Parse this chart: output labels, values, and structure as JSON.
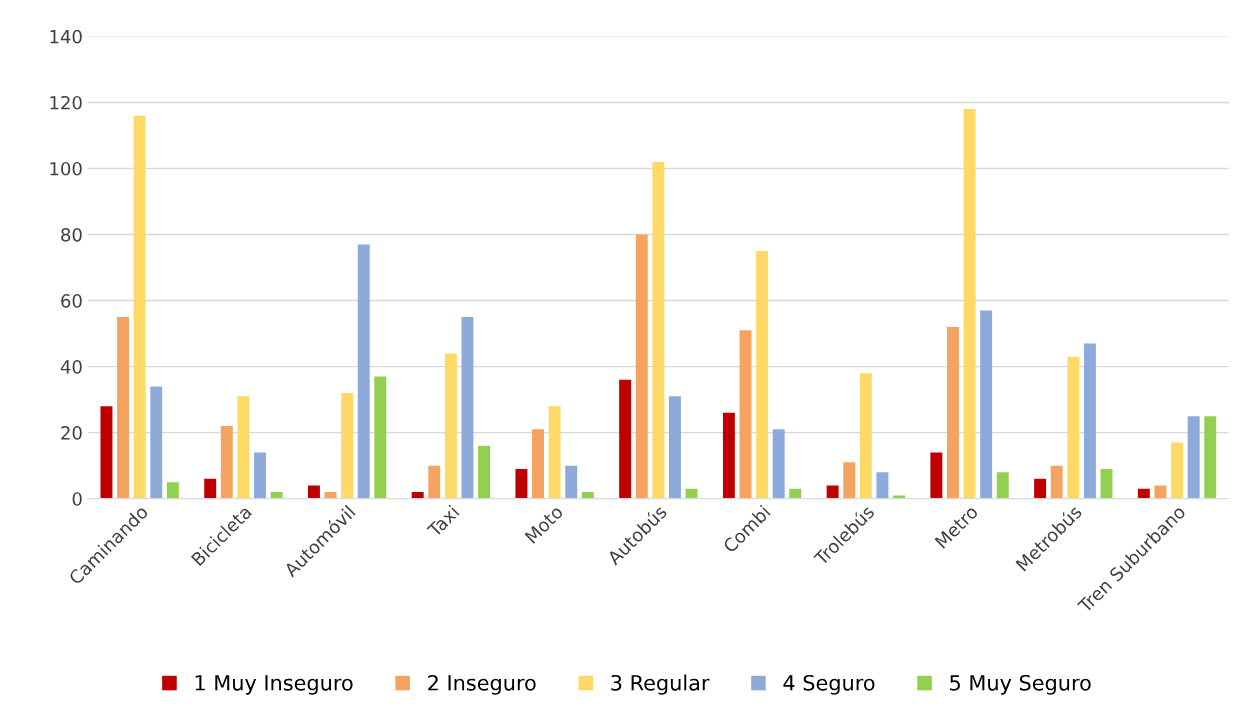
{
  "chart_data": {
    "type": "bar",
    "categories": [
      "Caminando",
      "Bicicleta",
      "Automóvil",
      "Taxi",
      "Moto",
      "Autobús",
      "Combi",
      "Trolebús",
      "Metro",
      "Metrobús",
      "Tren Suburbano"
    ],
    "series": [
      {
        "name": "1 Muy Inseguro",
        "color": "#c00000",
        "values": [
          28,
          6,
          4,
          2,
          9,
          36,
          26,
          4,
          14,
          6,
          3
        ]
      },
      {
        "name": "2 Inseguro",
        "color": "#f4a460",
        "values": [
          55,
          22,
          2,
          10,
          21,
          80,
          51,
          11,
          52,
          10,
          4
        ]
      },
      {
        "name": "3 Regular",
        "color": "#ffd966",
        "values": [
          116,
          31,
          32,
          44,
          28,
          102,
          75,
          38,
          118,
          43,
          17
        ]
      },
      {
        "name": "4 Seguro",
        "color": "#8eaadb",
        "values": [
          34,
          14,
          77,
          55,
          10,
          31,
          21,
          8,
          57,
          47,
          25
        ]
      },
      {
        "name": "5 Muy Seguro",
        "color": "#92d050",
        "values": [
          5,
          2,
          37,
          16,
          2,
          3,
          3,
          1,
          8,
          9,
          25
        ]
      }
    ],
    "ylim": [
      0,
      140
    ],
    "yticks": [
      0,
      20,
      40,
      60,
      80,
      100,
      120,
      140
    ],
    "grid": "y",
    "legend": "bottom"
  }
}
